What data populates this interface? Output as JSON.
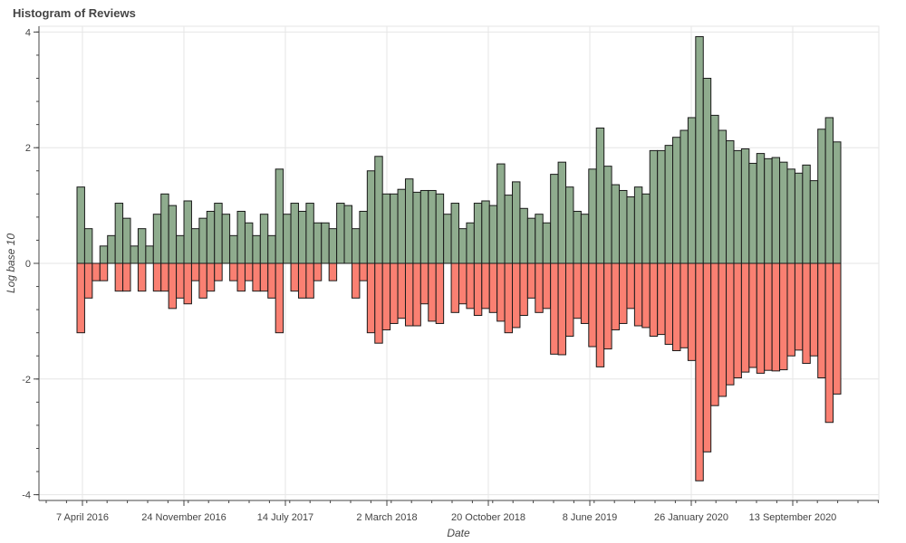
{
  "chart_data": {
    "type": "bar",
    "title": "Histogram of Reviews",
    "xlabel": "Date",
    "ylabel": "Log base 10",
    "ylim": [
      -4.1,
      4.1
    ],
    "grid": true,
    "yticks": [
      4,
      2,
      0,
      -2,
      -4
    ],
    "ytick_labels": [
      "4",
      "2",
      "0",
      "-2",
      "-4"
    ],
    "xticks": [
      "7 April 2016",
      "24 November 2016",
      "14 July 2017",
      "2 March 2018",
      "20 October 2018",
      "8 June 2019",
      "26 January 2020",
      "13 September 2020"
    ],
    "colors": {
      "positive": "#8fac8e",
      "negative": "#fa8072",
      "outline": "#1a1a1a",
      "grid": "#e6e6e6"
    },
    "series": [
      {
        "values": [
          1.32,
          0.6,
          0.0,
          0.3,
          0.48,
          1.04,
          0.78,
          0.3,
          0.6,
          0.3,
          0.85,
          1.2,
          1.0,
          0.48,
          1.08,
          0.6,
          0.78,
          0.9,
          1.04,
          0.85,
          0.48,
          0.9,
          0.7,
          0.48,
          0.85,
          0.48,
          1.63,
          0.85,
          1.04,
          0.9,
          1.04,
          0.7,
          0.7,
          0.6,
          1.04,
          1.0,
          0.6,
          0.9,
          1.6,
          1.85,
          1.2,
          1.2,
          1.28,
          1.46,
          1.23,
          1.26,
          1.26,
          1.2,
          0.85,
          1.04,
          0.6,
          0.7,
          1.04,
          1.08,
          1.0,
          1.72,
          1.18,
          1.41,
          0.95,
          0.78,
          0.85,
          0.7,
          1.54,
          1.75,
          1.32,
          0.9,
          0.85,
          1.63,
          2.34,
          1.68,
          1.36,
          1.26,
          1.15,
          1.32,
          1.2,
          1.95,
          1.95,
          2.04,
          2.18,
          2.3,
          2.52,
          3.92,
          3.2,
          2.56,
          2.3,
          2.12,
          1.95,
          1.98,
          1.73,
          1.9,
          1.81,
          1.83,
          1.75,
          1.63,
          1.56,
          1.7,
          1.43,
          2.32,
          2.52,
          2.1
        ]
      },
      {
        "values": [
          -1.2,
          -0.6,
          -0.3,
          -0.3,
          0.0,
          -0.48,
          -0.48,
          0.0,
          -0.48,
          0.0,
          -0.48,
          -0.48,
          -0.78,
          -0.6,
          -0.7,
          -0.3,
          -0.6,
          -0.48,
          -0.3,
          0.0,
          -0.3,
          -0.48,
          -0.3,
          -0.48,
          -0.48,
          -0.6,
          -1.2,
          0.0,
          -0.48,
          -0.6,
          -0.6,
          -0.3,
          0.0,
          -0.3,
          0.0,
          0.0,
          -0.6,
          -0.3,
          -1.2,
          -1.38,
          -1.15,
          -1.04,
          -0.95,
          -1.08,
          -1.08,
          -0.7,
          -1.0,
          -1.04,
          0.0,
          -0.85,
          -0.7,
          -0.78,
          -0.9,
          -0.78,
          -0.85,
          -1.0,
          -1.2,
          -1.11,
          -0.9,
          -0.6,
          -0.85,
          -0.78,
          -1.57,
          -1.58,
          -1.26,
          -0.95,
          -1.04,
          -1.44,
          -1.79,
          -1.48,
          -1.15,
          -1.04,
          -0.78,
          -1.08,
          -1.11,
          -1.26,
          -1.23,
          -1.4,
          -1.51,
          -1.46,
          -1.68,
          -3.76,
          -3.26,
          -2.46,
          -2.3,
          -2.1,
          -1.98,
          -1.88,
          -1.8,
          -1.9,
          -1.85,
          -1.86,
          -1.84,
          -1.6,
          -1.5,
          -1.73,
          -1.6,
          -1.98,
          -2.75,
          -2.26
        ]
      }
    ]
  }
}
